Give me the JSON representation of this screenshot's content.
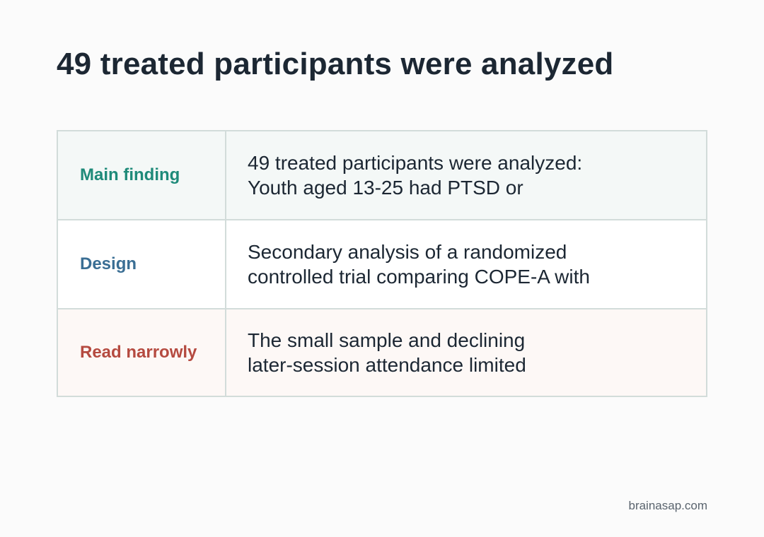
{
  "title": "49 treated participants were analyzed",
  "rows": [
    {
      "label": "Main finding",
      "line1": "49 treated participants were analyzed:",
      "line2": "Youth aged 13-25 had PTSD or"
    },
    {
      "label": "Design",
      "line1": "Secondary analysis of a randomized",
      "line2": "controlled trial comparing COPE-A with"
    },
    {
      "label": "Read narrowly",
      "line1": "The small sample and declining",
      "line2": "later-session attendance limited"
    }
  ],
  "footer": "brainasap.com",
  "colors": {
    "main_finding": "#1e8a79",
    "design": "#3a6e94",
    "read_narrowly": "#b54a40",
    "title": "#1c2733"
  }
}
